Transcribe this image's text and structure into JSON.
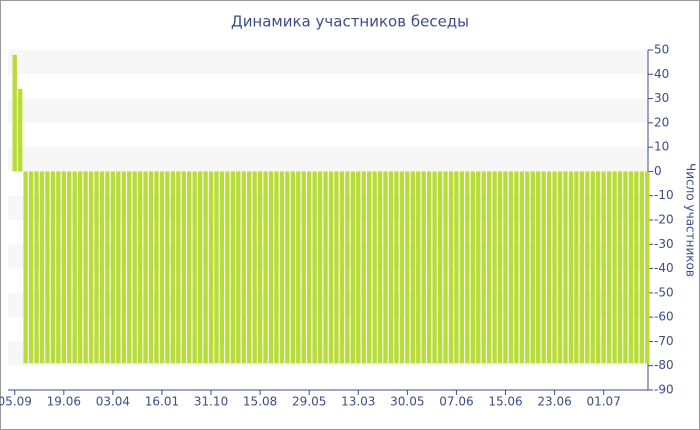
{
  "chart_data": {
    "type": "bar",
    "title": "Динамика участников беседы",
    "y_label": "Число участников",
    "categories": [
      "05.09",
      null,
      null,
      null,
      null,
      null,
      null,
      null,
      null,
      "19.06",
      null,
      null,
      null,
      null,
      null,
      null,
      null,
      null,
      "03.04",
      null,
      null,
      null,
      null,
      null,
      null,
      null,
      null,
      "16.01",
      null,
      null,
      null,
      null,
      null,
      null,
      null,
      null,
      "31.10",
      null,
      null,
      null,
      null,
      null,
      null,
      null,
      null,
      "15.08",
      null,
      null,
      null,
      null,
      null,
      null,
      null,
      null,
      "29.05",
      null,
      null,
      null,
      null,
      null,
      null,
      null,
      null,
      "13.03",
      null,
      null,
      null,
      null,
      null,
      null,
      null,
      null,
      "30.05",
      null,
      null,
      null,
      null,
      null,
      null,
      null,
      null,
      "07.06",
      null,
      null,
      null,
      null,
      null,
      null,
      null,
      null,
      "15.06",
      null,
      null,
      null,
      null,
      null,
      null,
      null,
      null,
      "23.06",
      null,
      null,
      null,
      null,
      null,
      null,
      null,
      null,
      "01.07",
      null,
      null,
      null,
      null,
      null,
      null,
      null,
      null
    ],
    "values": [
      48,
      34,
      -79,
      -79,
      -79,
      -79,
      -79,
      -79,
      -79,
      -79,
      -79,
      -79,
      -79,
      -79,
      -79,
      -79,
      -79,
      -79,
      -79,
      -79,
      -79,
      -79,
      -79,
      -79,
      -79,
      -79,
      -79,
      -79,
      -79,
      -79,
      -79,
      -79,
      -79,
      -79,
      -79,
      -79,
      -79,
      -79,
      -79,
      -79,
      -79,
      -79,
      -79,
      -79,
      -79,
      -79,
      -79,
      -79,
      -79,
      -79,
      -79,
      -79,
      -79,
      -79,
      -79,
      -79,
      -79,
      -79,
      -79,
      -79,
      -79,
      -79,
      -79,
      -79,
      -79,
      -79,
      -79,
      -79,
      -79,
      -79,
      -79,
      -79,
      -79,
      -79,
      -79,
      -79,
      -79,
      -79,
      -79,
      -79,
      -79,
      -79,
      -79,
      -79,
      -79,
      -79,
      -79,
      -79,
      -79,
      -79,
      -79,
      -79,
      -79,
      -79,
      -79,
      -79,
      -79,
      -79,
      -79,
      -79,
      -79,
      -79,
      -79,
      -79,
      -79,
      -79,
      -79,
      -79,
      -79,
      -79,
      -79,
      -79,
      -79,
      -79,
      -79,
      -79,
      -79
    ],
    "color": "#b8dc3a",
    "ylim": [
      -90,
      50
    ],
    "yticks": [
      50,
      40,
      30,
      20,
      10,
      0,
      -10,
      -20,
      -30,
      -40,
      -50,
      -60,
      -70,
      -80,
      -90
    ],
    "grid": "bands",
    "y_axis_side": "right"
  }
}
